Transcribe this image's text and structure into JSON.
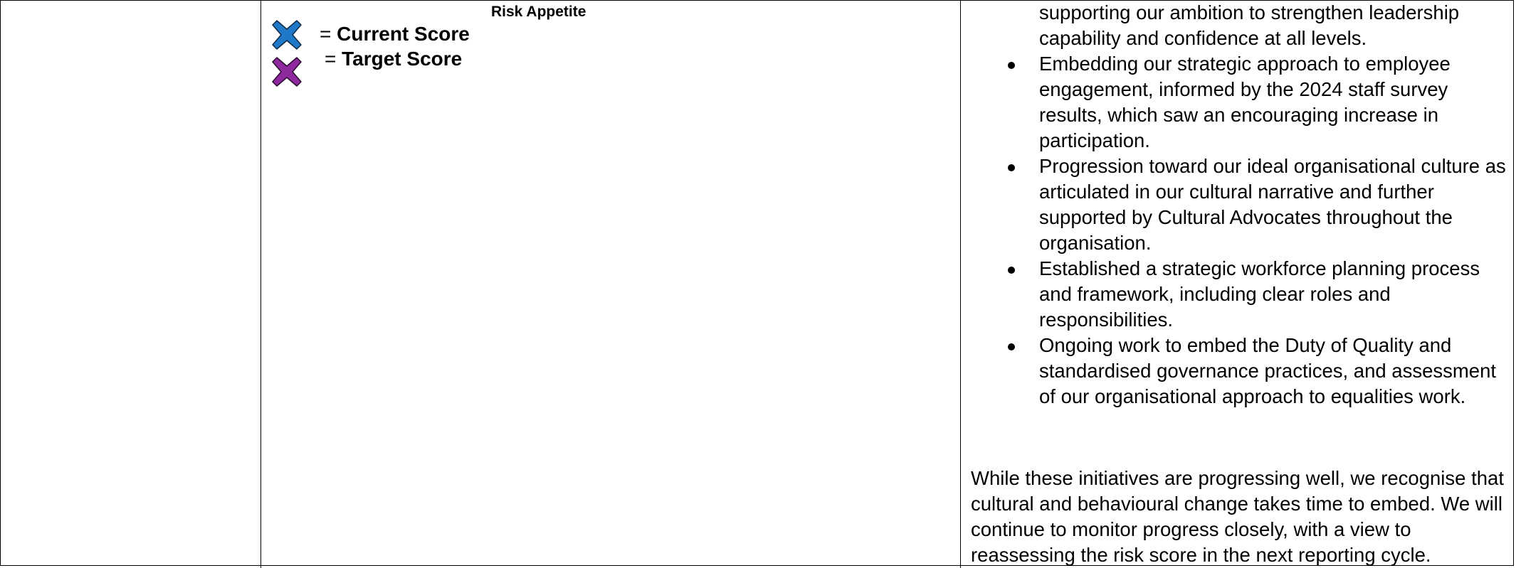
{
  "legend": {
    "title": "Risk Appetite",
    "items": [
      {
        "icon": "blue-x-icon",
        "color": "#1f78c8",
        "equals": "=",
        "label": "Current Score"
      },
      {
        "icon": "purple-x-icon",
        "color": "#8e2a9e",
        "equals": "=",
        "label": "Target Score"
      }
    ]
  },
  "narrative": {
    "bullets": [
      {
        "text": "supporting our ambition to strengthen leadership capability and confidence at all levels.",
        "continuation": true
      },
      {
        "text": "Embedding our strategic approach to employee engagement, informed by the 2024 staff survey results, which saw an encouraging increase in participation."
      },
      {
        "text": "Progression toward our ideal organisational culture as articulated in our cultural narrative and further supported by Cultural Advocates throughout the organisation."
      },
      {
        "text": "Established a strategic workforce planning process and framework, including clear roles and responsibilities."
      },
      {
        "text": "Ongoing work to embed the Duty of Quality and standardised governance practices, and assessment of our organisational approach to equalities work."
      }
    ],
    "closing": "While these initiatives are progressing well, we recognise that cultural and behavioural change takes time to embed. We will continue to monitor progress closely, with a view to reassessing the risk score in the next reporting cycle."
  }
}
